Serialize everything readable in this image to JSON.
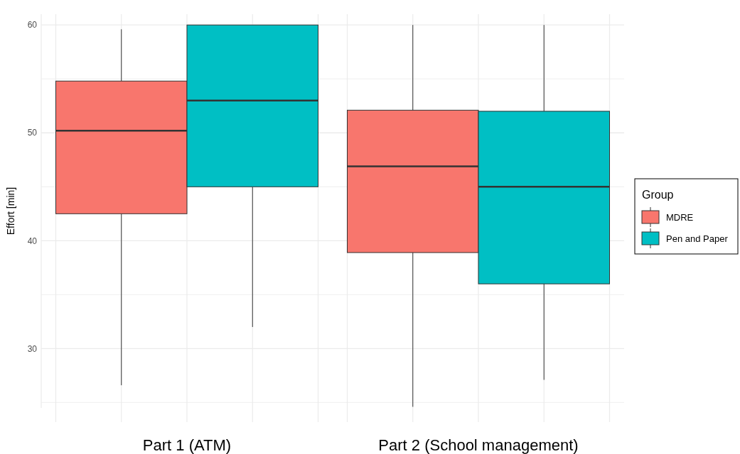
{
  "chart_data": {
    "type": "box",
    "ylabel": "Effort [min]",
    "legend_title": "Group",
    "categories": [
      "Part 1 (ATM)",
      "Part 2 (School management)"
    ],
    "ylim": [
      24.5,
      61
    ],
    "yticks": [
      30,
      40,
      50,
      60
    ],
    "grid": true,
    "legend": "right",
    "series": [
      {
        "name": "MDRE",
        "color": "#f8766d",
        "boxes": [
          {
            "low": 26.6,
            "q1": 42.5,
            "median": 50.2,
            "q3": 54.8,
            "high": 59.6
          },
          {
            "low": 24.6,
            "q1": 38.9,
            "median": 46.9,
            "q3": 52.1,
            "high": 60
          }
        ]
      },
      {
        "name": "Pen and Paper",
        "color": "#00bfc4",
        "boxes": [
          {
            "low": 32,
            "q1": 45,
            "median": 53,
            "q3": 60,
            "high": 60
          },
          {
            "low": 27.1,
            "q1": 36,
            "median": 45,
            "q3": 52,
            "high": 60
          }
        ]
      }
    ]
  }
}
